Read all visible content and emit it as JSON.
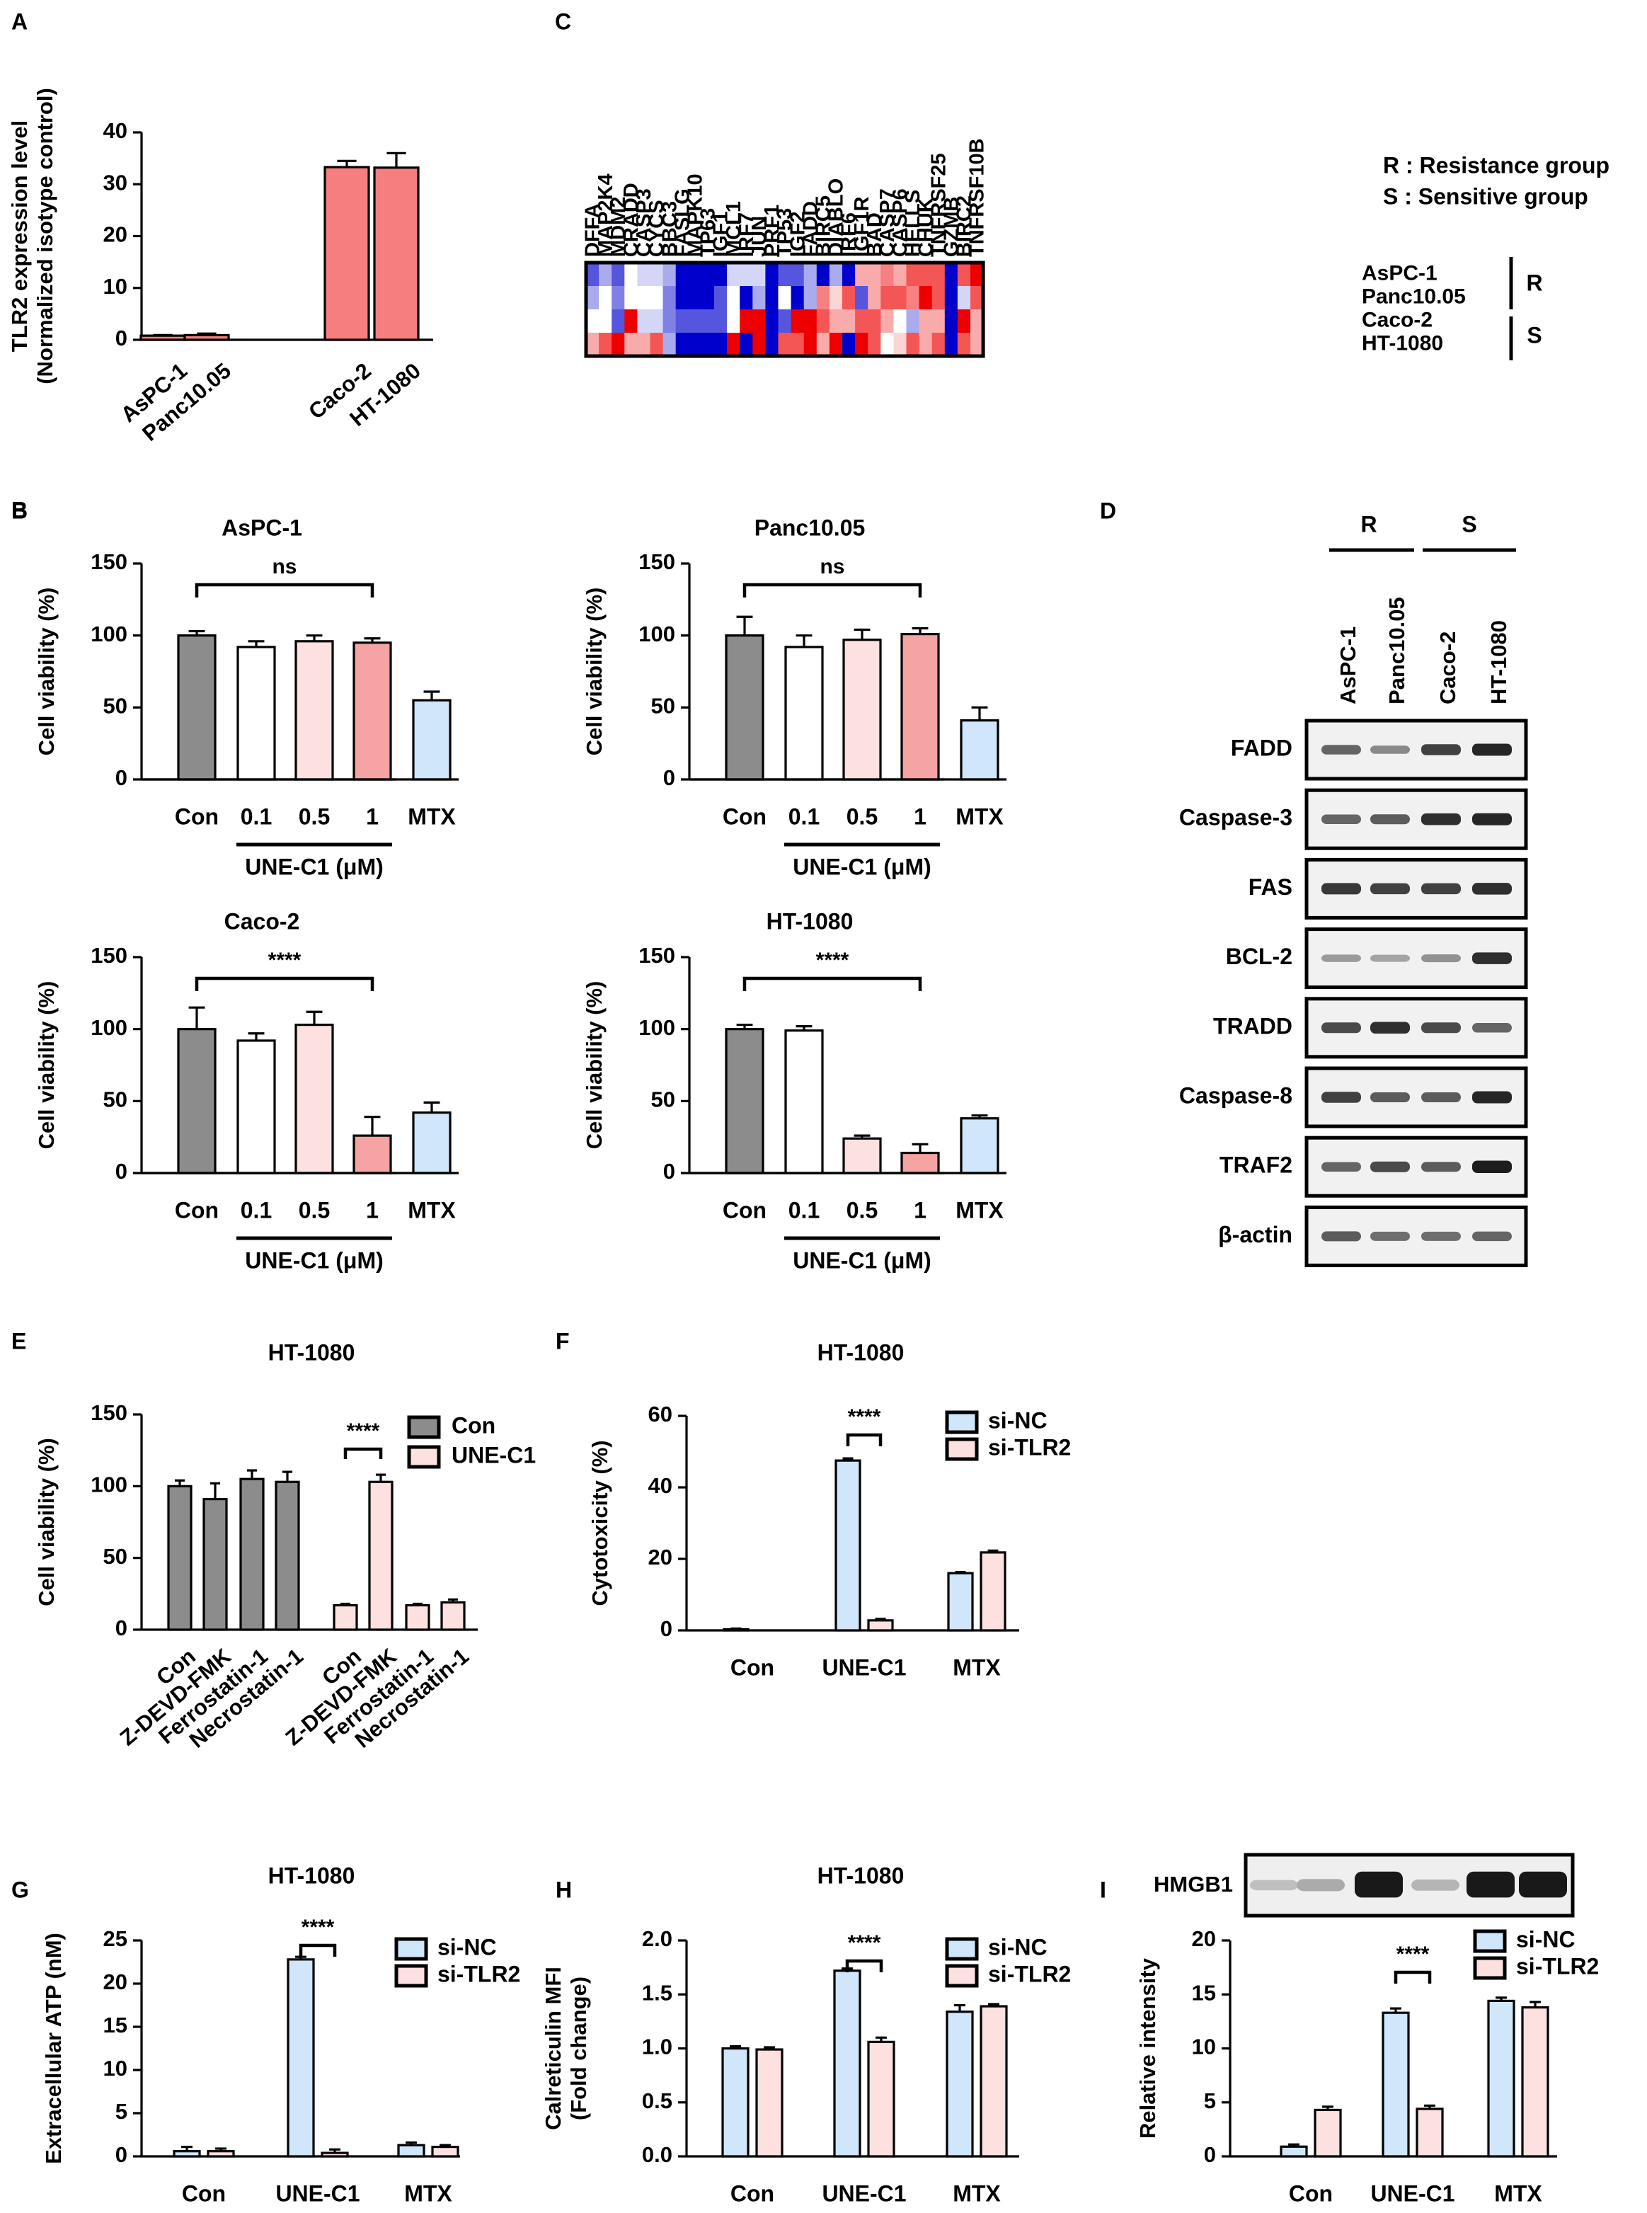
{
  "figure": {
    "background": "#ffffff"
  },
  "colors": {
    "gray": "#8c8c8c",
    "white": "#ffffff",
    "lightpink": "#fde0e0",
    "pink": "#f5a3a3",
    "lightblue": "#cfe6fb",
    "salmon": "#f77e7e",
    "heat_low": "#0000cc",
    "heat_mid": "#ffffff",
    "heat_high": "#ee0000"
  },
  "chart_data": [
    {
      "id": "A",
      "panel_label": "A",
      "type": "bar",
      "title": "",
      "ylabel": [
        "TLR2 expression level",
        "(Normalized isotype control)"
      ],
      "ylim": [
        0,
        40
      ],
      "yticks": [
        0,
        10,
        20,
        30,
        40
      ],
      "categories": [
        "AsPC-1",
        "Panc10.05",
        "Caco-2",
        "HT-1080"
      ],
      "values": [
        0.8,
        0.9,
        33.3,
        33.2
      ],
      "errors": [
        0.1,
        0.3,
        1.2,
        2.8
      ],
      "bar_colors": [
        "salmon",
        "salmon",
        "salmon",
        "salmon"
      ]
    },
    {
      "id": "B1",
      "panel_label": "B",
      "type": "bar",
      "title": "AsPC-1",
      "ylabel": [
        "Cell viability (%)"
      ],
      "ylim": [
        0,
        150
      ],
      "yticks": [
        0,
        50,
        100,
        150
      ],
      "categories": [
        "Con",
        "0.1",
        "0.5",
        "1",
        "MTX"
      ],
      "values": [
        100,
        92,
        96,
        95,
        55
      ],
      "errors": [
        3,
        4,
        4,
        3,
        6
      ],
      "bar_colors": [
        "gray",
        "white",
        "lightpink",
        "pink",
        "lightblue"
      ],
      "group_label": "UNE-C1 (μM)",
      "significance": "ns"
    },
    {
      "id": "B2",
      "panel_label": "",
      "type": "bar",
      "title": "Panc10.05",
      "ylabel": [
        "Cell viability (%)"
      ],
      "ylim": [
        0,
        150
      ],
      "yticks": [
        0,
        50,
        100,
        150
      ],
      "categories": [
        "Con",
        "0.1",
        "0.5",
        "1",
        "MTX"
      ],
      "values": [
        100,
        92,
        97,
        101,
        41
      ],
      "errors": [
        13,
        8,
        7,
        4,
        9
      ],
      "bar_colors": [
        "gray",
        "white",
        "lightpink",
        "pink",
        "lightblue"
      ],
      "group_label": "UNE-C1 (μM)",
      "significance": "ns"
    },
    {
      "id": "B3",
      "panel_label": "",
      "type": "bar",
      "title": "Caco-2",
      "ylabel": [
        "Cell viability (%)"
      ],
      "ylim": [
        0,
        150
      ],
      "yticks": [
        0,
        50,
        100,
        150
      ],
      "categories": [
        "Con",
        "0.1",
        "0.5",
        "1",
        "MTX"
      ],
      "values": [
        100,
        92,
        103,
        26,
        42
      ],
      "errors": [
        15,
        5,
        9,
        13,
        7
      ],
      "bar_colors": [
        "gray",
        "white",
        "lightpink",
        "pink",
        "lightblue"
      ],
      "group_label": "UNE-C1 (μM)",
      "significance": "****"
    },
    {
      "id": "B4",
      "panel_label": "",
      "type": "bar",
      "title": "HT-1080",
      "ylabel": [
        "Cell viability (%)"
      ],
      "ylim": [
        0,
        150
      ],
      "yticks": [
        0,
        50,
        100,
        150
      ],
      "categories": [
        "Con",
        "0.1",
        "0.5",
        "1",
        "MTX"
      ],
      "values": [
        100,
        99,
        24,
        14,
        38
      ],
      "errors": [
        3,
        3,
        2,
        6,
        2
      ],
      "bar_colors": [
        "gray",
        "white",
        "lightpink",
        "pink",
        "lightblue"
      ],
      "group_label": "UNE-C1 (μM)",
      "significance": "****"
    },
    {
      "id": "E",
      "panel_label": "E",
      "type": "bar",
      "title": "HT-1080",
      "ylabel": [
        "Cell viability (%)"
      ],
      "ylim": [
        0,
        150
      ],
      "yticks": [
        0,
        50,
        100,
        150
      ],
      "categories": [
        "Con",
        "Z-DEVD-FMK",
        "Ferrostatin-1",
        "Necrostatin-1",
        "Con",
        "Z-DEVD-FMK",
        "Ferrostatin-1",
        "Necrostatin-1"
      ],
      "values": [
        100,
        91,
        105,
        103,
        17,
        103,
        17,
        19
      ],
      "errors": [
        4,
        11,
        6,
        7,
        1,
        5,
        1,
        2
      ],
      "series_index": [
        0,
        0,
        0,
        0,
        1,
        1,
        1,
        1
      ],
      "legend": [
        "Con",
        "UNE-C1"
      ],
      "legend_colors": [
        "gray",
        "lightpink"
      ],
      "significance": "****"
    },
    {
      "id": "F",
      "panel_label": "F",
      "type": "bar",
      "title": "HT-1080",
      "ylabel": [
        "Cytotoxicity (%)"
      ],
      "ylim": [
        0,
        60
      ],
      "yticks": [
        0,
        20,
        40,
        60
      ],
      "categories": [
        "Con",
        "UNE-C1",
        "MTX"
      ],
      "series": [
        {
          "name": "si-NC",
          "color": "lightblue",
          "values": [
            0.3,
            47.5,
            16.0
          ],
          "errors": [
            0.2,
            0.6,
            0.3
          ]
        },
        {
          "name": "si-TLR2",
          "color": "lightpink",
          "values": [
            0.0,
            2.8,
            21.8
          ],
          "errors": [
            0.0,
            0.4,
            0.5
          ]
        }
      ],
      "significance": "****"
    },
    {
      "id": "G",
      "panel_label": "G",
      "type": "bar",
      "title": "HT-1080",
      "ylabel": [
        "Extracellular ATP (nM)"
      ],
      "ylim": [
        0,
        25
      ],
      "yticks": [
        0,
        5,
        10,
        15,
        20,
        25
      ],
      "categories": [
        "Con",
        "UNE-C1",
        "MTX"
      ],
      "series": [
        {
          "name": "si-NC",
          "color": "lightblue",
          "values": [
            0.6,
            22.8,
            1.3
          ],
          "errors": [
            0.5,
            0.3,
            0.3
          ]
        },
        {
          "name": "si-TLR2",
          "color": "lightpink",
          "values": [
            0.6,
            0.4,
            1.1
          ],
          "errors": [
            0.3,
            0.4,
            0.2
          ]
        }
      ],
      "significance": "****"
    },
    {
      "id": "H",
      "panel_label": "H",
      "type": "bar",
      "title": "HT-1080",
      "ylabel": [
        "Calreticulin MFI",
        "(Fold change)"
      ],
      "ylim": [
        0,
        2.0
      ],
      "yticks": [
        "0.0",
        "0.5",
        "1.0",
        "1.5",
        "2.0"
      ],
      "categories": [
        "Con",
        "UNE-C1",
        "MTX"
      ],
      "series": [
        {
          "name": "si-NC",
          "color": "lightblue",
          "values": [
            1.0,
            1.72,
            1.34
          ],
          "errors": [
            0.02,
            0.02,
            0.06
          ]
        },
        {
          "name": "si-TLR2",
          "color": "lightpink",
          "values": [
            0.99,
            1.06,
            1.39
          ],
          "errors": [
            0.02,
            0.04,
            0.02
          ]
        }
      ],
      "significance": "****"
    },
    {
      "id": "I",
      "panel_label": "I",
      "type": "bar",
      "title": "",
      "ylabel": [
        "Relative intensity"
      ],
      "ylim": [
        0,
        20
      ],
      "yticks": [
        0,
        5,
        10,
        15,
        20
      ],
      "categories": [
        "Con",
        "UNE-C1",
        "MTX"
      ],
      "series": [
        {
          "name": "si-NC",
          "color": "lightblue",
          "values": [
            0.9,
            13.3,
            14.4
          ],
          "errors": [
            0.2,
            0.4,
            0.3
          ]
        },
        {
          "name": "si-TLR2",
          "color": "lightpink",
          "values": [
            4.3,
            4.4,
            13.8
          ],
          "errors": [
            0.3,
            0.3,
            0.5
          ]
        }
      ],
      "significance": "****"
    },
    {
      "id": "C",
      "panel_label": "C",
      "type": "heatmap",
      "columns": [
        "DFFA",
        "MAP2K4",
        "MDM2",
        "CRADD",
        "CASP3",
        "CYCS",
        "BBC3",
        "FASLG",
        "MAPK10",
        "TP63",
        "IGF1",
        "MCL1",
        "IRF7",
        "JUN",
        "PRF1",
        "TP53",
        "IGF2",
        "FADD",
        "BIRC5",
        "DIABLO",
        "IRF6",
        "IGF1R",
        "BAD",
        "CASP7",
        "CASP6",
        "HELLS",
        "CHUK",
        "TNFRSF25",
        "GZMB",
        "BIRC2",
        "TNFRSF10B"
      ],
      "rows": [
        "AsPC-1",
        "Panc10.05",
        "Caco-2",
        "HT-1080"
      ],
      "values": [
        [
          -2,
          -1,
          -2,
          0,
          -0.5,
          -0.5,
          -1,
          -3,
          -3,
          -3,
          -3,
          -0.5,
          -0.5,
          -0.5,
          -3,
          -2,
          -2,
          -1,
          -3,
          -1,
          -3,
          1,
          1,
          1.5,
          1,
          2,
          2,
          2,
          -3,
          2,
          3
        ],
        [
          -1,
          0,
          -1.5,
          0,
          0,
          0,
          -1.5,
          -3,
          -3,
          -3,
          -2,
          0,
          -3,
          -1,
          -3,
          0,
          -3,
          -1,
          1.5,
          0.5,
          2,
          -2,
          1,
          2,
          2,
          1.5,
          3,
          2,
          -3,
          -0.5,
          2
        ],
        [
          0,
          0,
          -2,
          3,
          -0.5,
          -0.5,
          -1.5,
          -2,
          -2,
          -2,
          -2,
          0,
          3,
          3,
          -3,
          -2,
          3,
          3,
          2,
          1,
          1,
          2,
          2,
          1,
          0,
          -1,
          1,
          1,
          -3,
          3,
          1
        ],
        [
          1,
          2,
          3,
          1,
          1,
          2,
          -1,
          -3,
          -3,
          -3,
          -3,
          3,
          -3,
          3,
          -3,
          2,
          2,
          3,
          1,
          3,
          -3,
          3,
          2,
          0,
          0.5,
          2,
          1,
          2,
          -3,
          2,
          1
        ]
      ],
      "group_markers": [
        "R",
        "S"
      ],
      "legend": [
        "R : Resistance group",
        "S : Sensitive group"
      ]
    }
  ],
  "blot_D": {
    "panel_label": "D",
    "groups": [
      "R",
      "S"
    ],
    "lanes": [
      "AsPC-1",
      "Panc10.05",
      "Caco-2",
      "HT-1080"
    ],
    "proteins": [
      "FADD",
      "Caspase-3",
      "FAS",
      "BCL-2",
      "TRADD",
      "Caspase-8",
      "TRAF2",
      "β-actin"
    ],
    "band_intensities": [
      [
        0.55,
        0.35,
        0.75,
        0.9
      ],
      [
        0.55,
        0.6,
        0.85,
        0.9
      ],
      [
        0.8,
        0.75,
        0.75,
        0.85
      ],
      [
        0.25,
        0.2,
        0.3,
        0.85
      ],
      [
        0.7,
        0.85,
        0.7,
        0.55
      ],
      [
        0.75,
        0.6,
        0.6,
        0.9
      ],
      [
        0.55,
        0.7,
        0.6,
        0.95
      ],
      [
        0.6,
        0.5,
        0.5,
        0.55
      ]
    ]
  },
  "blot_I": {
    "label": "HMGB1",
    "band_intensities": [
      0.1,
      0.2,
      0.95,
      0.15,
      0.95,
      0.95
    ]
  }
}
